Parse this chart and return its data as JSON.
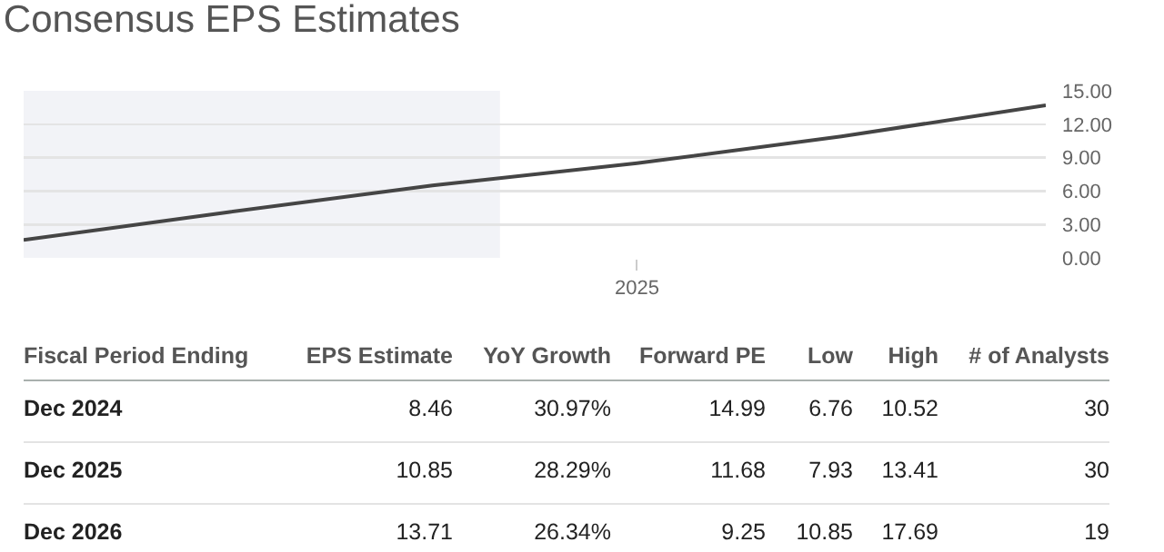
{
  "chart_data": {
    "type": "line",
    "title": "Consensus EPS Estimates",
    "categories": [
      null,
      null,
      null,
      "2025",
      null,
      null
    ],
    "series": [
      {
        "color": "#454545",
        "values": [
          1.6,
          4.1,
          6.5,
          8.5,
          10.9,
          13.7
        ]
      }
    ],
    "ylim": [
      0,
      15
    ],
    "yticks": [
      {
        "value": 0,
        "label": "0.00"
      },
      {
        "value": 3,
        "label": "3.00"
      },
      {
        "value": 6,
        "label": "6.00"
      },
      {
        "value": 9,
        "label": "9.00"
      },
      {
        "value": 12,
        "label": "12.00"
      },
      {
        "value": 15,
        "label": "15.00"
      }
    ],
    "grid": "y",
    "marker": "none",
    "line_style": "solid",
    "annotations": [
      "Fiscal Period Ending",
      "EPS Estimate",
      "YoY Growth",
      "Forward PE",
      "Low",
      "High",
      "# of Analysts",
      "Dec 2024",
      "8.46",
      "30.97%",
      "14.99",
      "6.76",
      "10.52",
      "30",
      "Dec 2025",
      "10.85",
      "28.29%",
      "11.68",
      "7.93",
      "13.41",
      "30",
      "Dec 2026",
      "13.71",
      "26.34%",
      "9.25",
      "10.85",
      "17.69",
      "19"
    ]
  }
}
